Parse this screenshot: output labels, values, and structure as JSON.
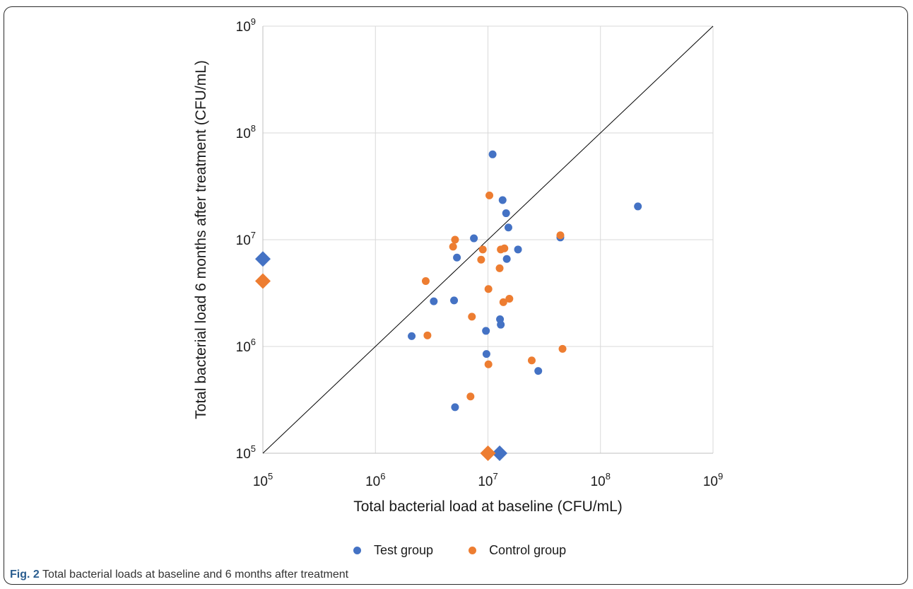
{
  "caption": {
    "label": "Fig. 2",
    "text": "Total bacterial loads at baseline and 6 months after treatment"
  },
  "chart_data": {
    "type": "scatter",
    "xlabel": "Total bacterial load at baseline (CFU/mL)",
    "ylabel": "Total bacterial load 6 months after treatment (CFU/mL)",
    "x_scale": "log",
    "y_scale": "log",
    "xlim": [
      100000,
      1000000000
    ],
    "ylim": [
      100000,
      1000000000
    ],
    "x_ticks": [
      {
        "base": "10",
        "exp": "5"
      },
      {
        "base": "10",
        "exp": "6"
      },
      {
        "base": "10",
        "exp": "7"
      },
      {
        "base": "10",
        "exp": "8"
      },
      {
        "base": "10",
        "exp": "9"
      }
    ],
    "y_ticks": [
      {
        "base": "10",
        "exp": "5"
      },
      {
        "base": "10",
        "exp": "6"
      },
      {
        "base": "10",
        "exp": "7"
      },
      {
        "base": "10",
        "exp": "8"
      },
      {
        "base": "10",
        "exp": "9"
      }
    ],
    "grid": true,
    "reference_line": "y = x",
    "legend_position": "bottom",
    "series": [
      {
        "name": "Test group",
        "color": "#4472c4",
        "marker": "circle",
        "points": [
          [
            11000000,
            63000000
          ],
          [
            13500000,
            23500000
          ],
          [
            14500000,
            17700000
          ],
          [
            15200000,
            13000000
          ],
          [
            7500000,
            10300000
          ],
          [
            44000000,
            10500000
          ],
          [
            18500000,
            8100000
          ],
          [
            14700000,
            6600000
          ],
          [
            5300000,
            6800000
          ],
          [
            3300000,
            2650000
          ],
          [
            5000000,
            2700000
          ],
          [
            12800000,
            1800000
          ],
          [
            13000000,
            1600000
          ],
          [
            9600000,
            1400000
          ],
          [
            2100000,
            1250000
          ],
          [
            9700000,
            850000
          ],
          [
            28000000,
            590000
          ],
          [
            5100000,
            270000
          ],
          [
            215000000,
            20500000
          ]
        ]
      },
      {
        "name": "Control group",
        "color": "#ed7d31",
        "marker": "circle",
        "points": [
          [
            10300000,
            26000000
          ],
          [
            44000000,
            11000000
          ],
          [
            5100000,
            10000000
          ],
          [
            4900000,
            8600000
          ],
          [
            9000000,
            8100000
          ],
          [
            13000000,
            8100000
          ],
          [
            14000000,
            8300000
          ],
          [
            8700000,
            6500000
          ],
          [
            12700000,
            5400000
          ],
          [
            2800000,
            4100000
          ],
          [
            10100000,
            3450000
          ],
          [
            15500000,
            2800000
          ],
          [
            13700000,
            2600000
          ],
          [
            7200000,
            1900000
          ],
          [
            2900000,
            1270000
          ],
          [
            46000000,
            950000
          ],
          [
            24500000,
            740000
          ],
          [
            10100000,
            680000
          ],
          [
            7000000,
            340000
          ]
        ]
      },
      {
        "name": "Test group",
        "color": "#4472c4",
        "marker": "diamond",
        "legend": false,
        "points": [
          [
            100000,
            6600000
          ],
          [
            12700000,
            100000
          ]
        ]
      },
      {
        "name": "Control group",
        "color": "#ed7d31",
        "marker": "diamond",
        "legend": false,
        "points": [
          [
            100000,
            4100000
          ],
          [
            10000000,
            100000
          ]
        ]
      }
    ]
  }
}
